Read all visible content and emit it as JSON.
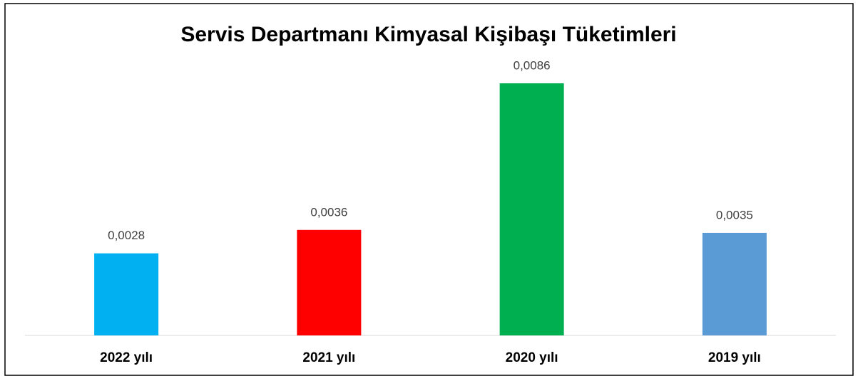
{
  "chart_data": {
    "type": "bar",
    "title": "Servis Departmanı Kimyasal Kişibaşı Tüketimleri",
    "categories": [
      "2022 yılı",
      "2021 yılı",
      "2020 yılı",
      "2019 yılı"
    ],
    "values": [
      0.0028,
      0.0036,
      0.0086,
      0.0035
    ],
    "value_labels": [
      "0,0028",
      "0,0036",
      "0,0086",
      "0,0035"
    ],
    "colors": [
      "#00b0f0",
      "#ff0000",
      "#00b050",
      "#5b9bd5"
    ]
  }
}
